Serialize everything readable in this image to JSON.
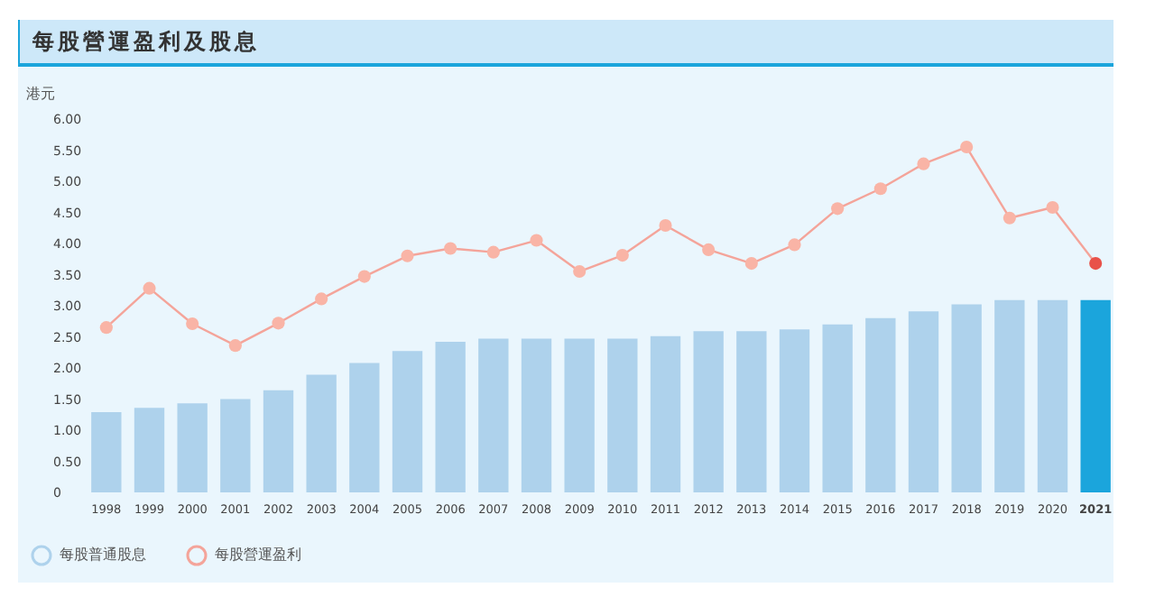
{
  "chart_data": {
    "type": "bar",
    "title": "每股營運盈利及股息",
    "ylabel": "港元",
    "categories": [
      "1998",
      "1999",
      "2000",
      "2001",
      "2002",
      "2003",
      "2004",
      "2005",
      "2006",
      "2007",
      "2008",
      "2009",
      "2010",
      "2011",
      "2012",
      "2013",
      "2014",
      "2015",
      "2016",
      "2017",
      "2018",
      "2019",
      "2020",
      "2021"
    ],
    "series": [
      {
        "name": "每股普通股息",
        "color": "#aed2ec",
        "colors": [
          "#aed2ec",
          "#aed2ec",
          "#aed2ec",
          "#aed2ec",
          "#aed2ec",
          "#aed2ec",
          "#aed2ec",
          "#aed2ec",
          "#aed2ec",
          "#aed2ec",
          "#aed2ec",
          "#aed2ec",
          "#aed2ec",
          "#aed2ec",
          "#aed2ec",
          "#aed2ec",
          "#aed2ec",
          "#aed2ec",
          "#aed2ec",
          "#aed2ec",
          "#aed2ec",
          "#aed2ec",
          "#aed2ec",
          "#1ba5dc"
        ],
        "values": [
          1.29,
          1.36,
          1.43,
          1.5,
          1.64,
          1.89,
          2.08,
          2.27,
          2.42,
          2.47,
          2.47,
          2.47,
          2.47,
          2.51,
          2.59,
          2.59,
          2.62,
          2.7,
          2.8,
          2.91,
          3.02,
          3.09,
          3.09,
          3.09
        ]
      },
      {
        "name": "每股營運盈利",
        "type": "line",
        "color": "#f4a49a",
        "colors": [
          "#f9b4a6",
          "#f9b4a6",
          "#f9b4a6",
          "#f9b4a6",
          "#f9b4a6",
          "#f9b4a6",
          "#f9b4a6",
          "#f9b4a6",
          "#f9b4a6",
          "#f9b4a6",
          "#f9b4a6",
          "#f9b4a6",
          "#f9b4a6",
          "#f9b4a6",
          "#f9b4a6",
          "#f9b4a6",
          "#f9b4a6",
          "#f9b4a6",
          "#f9b4a6",
          "#f9b4a6",
          "#f9b4a6",
          "#f9b4a6",
          "#f9b4a6",
          "#e8524a"
        ],
        "values": [
          2.65,
          3.28,
          2.71,
          2.36,
          2.72,
          3.11,
          3.47,
          3.8,
          3.92,
          3.86,
          4.05,
          3.55,
          3.81,
          4.29,
          3.9,
          3.68,
          3.98,
          4.56,
          4.88,
          5.28,
          5.55,
          4.41,
          4.58,
          3.68
        ]
      }
    ],
    "ylim": [
      0,
      6
    ],
    "yticks": [
      0,
      {
        "value": 0.5,
        "label": "0.50"
      },
      {
        "value": 1,
        "label": "1.00"
      },
      {
        "value": 1.5,
        "label": "1.50"
      },
      {
        "value": 2,
        "label": "2.00"
      },
      {
        "value": 2.5,
        "label": "2.50"
      },
      {
        "value": 3,
        "label": "3.00"
      },
      {
        "value": 3.5,
        "label": "3.50"
      },
      {
        "value": 4,
        "label": "4.00"
      },
      {
        "value": 4.5,
        "label": "4.50"
      },
      {
        "value": 5,
        "label": "5.00"
      },
      {
        "value": 5.5,
        "label": "5.50"
      },
      {
        "value": 6,
        "label": "6.00"
      }
    ],
    "grid": false,
    "legend": "bottom left",
    "marker": "circle"
  }
}
